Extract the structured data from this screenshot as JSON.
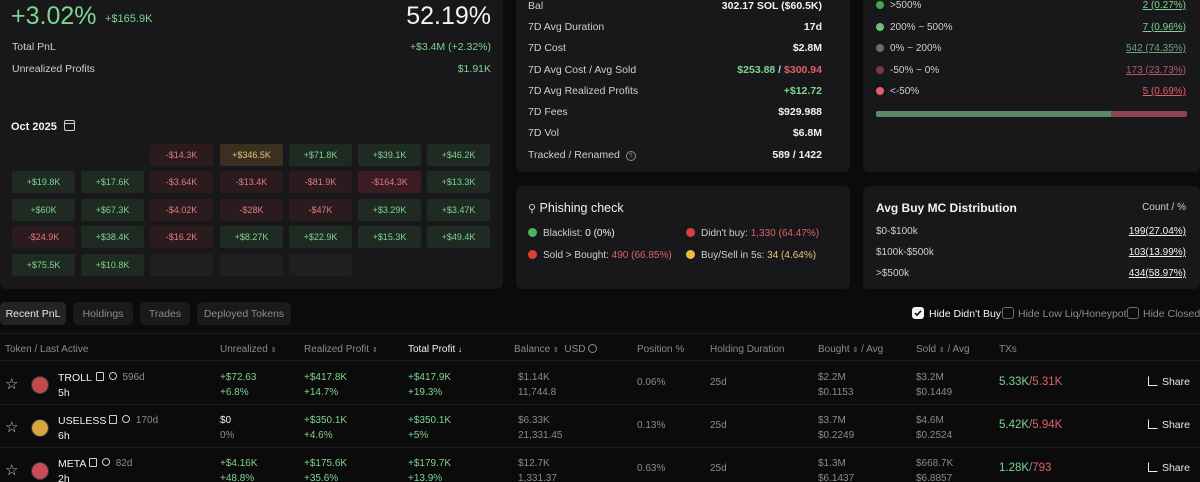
{
  "summary": {
    "pnl_pct": "+3.02%",
    "pnl_usd": "+$165.9K",
    "win_rate": "52.19%",
    "total_pnl_label": "Total PnL",
    "total_pnl_value": "+$3.4M (+2.32%)",
    "unrealized_label": "Unrealized Profits",
    "unrealized_value": "$1.91K"
  },
  "calendar": {
    "month": "Oct 2025",
    "rows": [
      [
        {
          "v": "",
          "t": "none"
        },
        {
          "v": "",
          "t": "none"
        },
        {
          "v": "-$14.3K",
          "t": "neg"
        },
        {
          "v": "+$346.5K",
          "t": "gold"
        },
        {
          "v": "+$71.8K",
          "t": "pos"
        },
        {
          "v": "+$39.1K",
          "t": "pos"
        },
        {
          "v": "+$46.2K",
          "t": "pos"
        }
      ],
      [
        {
          "v": "+$19.8K",
          "t": "pos"
        },
        {
          "v": "+$17.6K",
          "t": "pos"
        },
        {
          "v": "-$3.64K",
          "t": "neg"
        },
        {
          "v": "-$13.4K",
          "t": "neg"
        },
        {
          "v": "-$81.9K",
          "t": "neg"
        },
        {
          "v": "-$164.3K",
          "t": "neg2"
        },
        {
          "v": "+$13.3K",
          "t": "pos"
        }
      ],
      [
        {
          "v": "+$60K",
          "t": "pos"
        },
        {
          "v": "+$67.3K",
          "t": "pos"
        },
        {
          "v": "-$4.02K",
          "t": "neg"
        },
        {
          "v": "-$28K",
          "t": "neg"
        },
        {
          "v": "-$47K",
          "t": "neg"
        },
        {
          "v": "+$3.29K",
          "t": "pos"
        },
        {
          "v": "+$3.47K",
          "t": "pos"
        }
      ],
      [
        {
          "v": "-$24.9K",
          "t": "neg"
        },
        {
          "v": "+$38.4K",
          "t": "pos"
        },
        {
          "v": "-$16.2K",
          "t": "neg"
        },
        {
          "v": "+$8.27K",
          "t": "pos"
        },
        {
          "v": "+$22.9K",
          "t": "pos"
        },
        {
          "v": "+$15.3K",
          "t": "pos"
        },
        {
          "v": "+$49.4K",
          "t": "pos"
        }
      ],
      [
        {
          "v": "+$75.5K",
          "t": "pos"
        },
        {
          "v": "+$10.8K",
          "t": "pos"
        },
        {
          "v": "",
          "t": "empty"
        },
        {
          "v": "",
          "t": "empty"
        },
        {
          "v": "",
          "t": "empty"
        },
        {
          "v": "",
          "t": "none"
        },
        {
          "v": "",
          "t": "none"
        }
      ]
    ]
  },
  "stats": {
    "bal_label": "Bal",
    "bal_value": "302.17 SOL ($60.5K)",
    "avg_duration_label": "7D Avg Duration",
    "avg_duration_value": "17d",
    "cost_label": "7D Cost",
    "cost_value": "$2.8M",
    "avg_cost_label": "7D Avg Cost / Avg Sold",
    "avg_cost_value": "$253.88",
    "avg_sold_value": "$300.94",
    "avg_realized_label": "7D Avg Realized Profits",
    "avg_realized_value": "+$12.72",
    "fees_label": "7D Fees",
    "fees_value": "$929.988",
    "vol_label": "7D Vol",
    "vol_value": "$6.8M",
    "tracked_label": "Tracked / Renamed",
    "tracked_value": "589 / 1422"
  },
  "distribution": {
    "items": [
      {
        "label": ">500%",
        "value": "2 (0.27%)",
        "color": "#3fa857"
      },
      {
        "label": "200% ~ 500%",
        "value": "7 (0.96%)",
        "color": "#6fbf7a"
      },
      {
        "label": "0% ~ 200%",
        "value": "542 (74.35%)",
        "color": "#557a5c"
      },
      {
        "label": "-50% ~ 0%",
        "value": "173 (23.73%)",
        "color": "#7a3a44"
      },
      {
        "label": "<-50%",
        "value": "5 (0.69%)",
        "color": "#e0606a"
      }
    ],
    "bar": {
      "green_pct": 75.6,
      "red_pct": 24.4
    }
  },
  "phishing": {
    "title": "Phishing check",
    "blacklist_label": "Blacklist:",
    "blacklist_value": "0 (0%)",
    "didnt_buy_label": "Didn't buy:",
    "didnt_buy_value": "1,330 (64.47%)",
    "sold_label": "Sold > Bought:",
    "sold_value": "490 (66.85%)",
    "buysell_label": "Buy/Sell in 5s:",
    "buysell_value": "34 (4.64%)"
  },
  "mc_dist": {
    "title": "Avg Buy MC Distribution",
    "count_label": "Count / %",
    "rows": [
      {
        "label": "$0-$100k",
        "value": "199(27.04%)"
      },
      {
        "label": "$100k-$500k",
        "value": "103(13.99%)"
      },
      {
        "label": ">$500k",
        "value": "434(58.97%)"
      }
    ]
  },
  "tabs": [
    "Recent PnL",
    "Holdings",
    "Trades",
    "Deployed Tokens"
  ],
  "filters": [
    "Hide Didn't Buy",
    "Hide Low Liq/Honeypot",
    "Hide Closed"
  ],
  "table": {
    "headers": {
      "token": "Token / Last Active",
      "unrealized": "Unrealized",
      "realized": "Realized Profit",
      "total": "Total Profit",
      "balance": "Balance",
      "usd": "USD",
      "position": "Position %",
      "holding": "Holding Duration",
      "bought": "Bought",
      "bought_avg": "/ Avg",
      "sold": "Sold",
      "sold_avg": "/ Avg",
      "txs": "TXs"
    },
    "share_label": "Share",
    "rows": [
      {
        "name": "TROLL",
        "age": "596d",
        "active": "5h",
        "unreal": "+$72.63",
        "unreal_pct": "+6.8%",
        "real": "+$417.8K",
        "real_pct": "+14.7%",
        "total": "+$417.9K",
        "total_pct": "+19.3%",
        "bal": "$1.14K",
        "bal_amt": "11,744.8",
        "pos": "0.06%",
        "hold": "25d",
        "bought": "$2.2M",
        "bought_avg": "$0.1153",
        "sold": "$3.2M",
        "sold_avg": "$0.1449",
        "tx_buy": "5.33K",
        "tx_sell": "5.31K",
        "avatar": "#c24a4a"
      },
      {
        "name": "USELESS",
        "age": "170d",
        "active": "6h",
        "unreal": "$0",
        "unreal_pct": "0%",
        "real": "+$350.1K",
        "real_pct": "+4.6%",
        "total": "+$350.1K",
        "total_pct": "+5%",
        "bal": "$6.33K",
        "bal_amt": "21,331.45",
        "pos": "0.13%",
        "hold": "25d",
        "bought": "$3.7M",
        "bought_avg": "$0.2249",
        "sold": "$4.6M",
        "sold_avg": "$0.2524",
        "tx_buy": "5.42K",
        "tx_sell": "5.94K",
        "avatar": "#d9a640"
      },
      {
        "name": "META",
        "age": "82d",
        "active": "2h",
        "unreal": "+$4.16K",
        "unreal_pct": "+48.8%",
        "real": "+$175.6K",
        "real_pct": "+35.6%",
        "total": "+$179.7K",
        "total_pct": "+13.9%",
        "bal": "$12.7K",
        "bal_amt": "1,331.37",
        "pos": "0.63%",
        "hold": "25d",
        "bought": "$1.3M",
        "bought_avg": "$6.1437",
        "sold": "$668.7K",
        "sold_avg": "$6.8857",
        "tx_buy": "1.28K",
        "tx_sell": "793",
        "avatar": "#c94a5a"
      }
    ]
  }
}
